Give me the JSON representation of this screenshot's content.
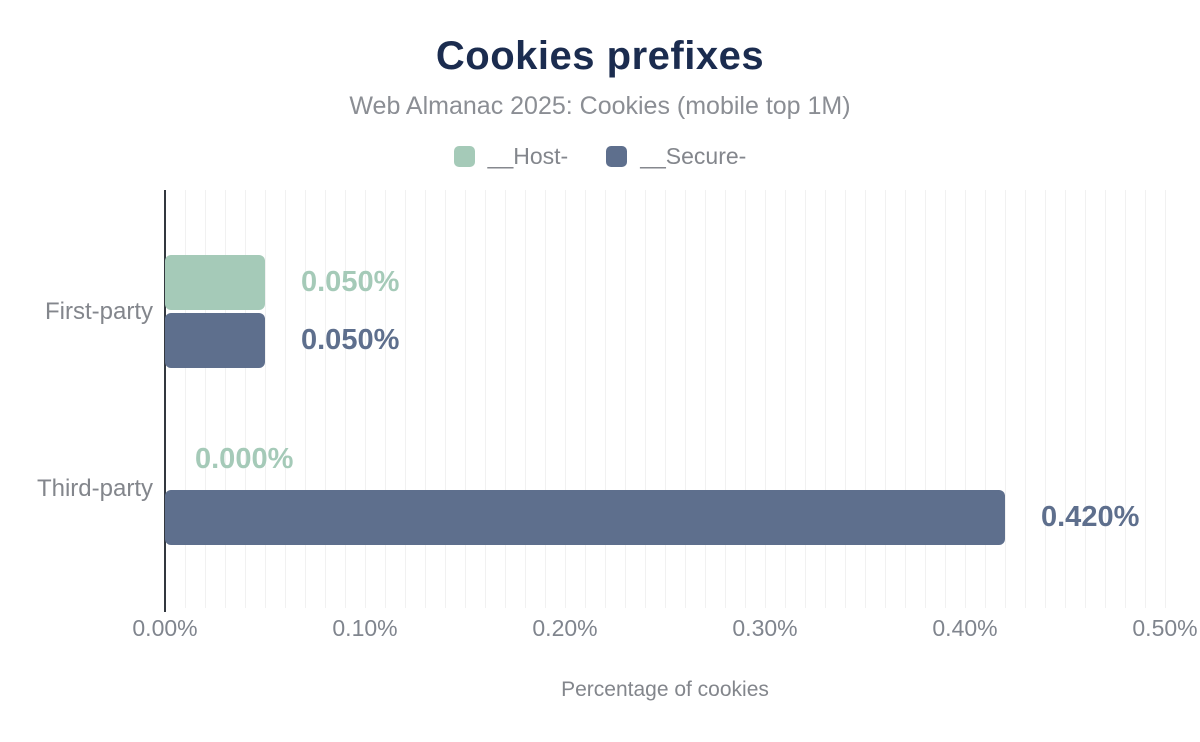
{
  "header": {
    "title": "Cookies prefixes",
    "subtitle": "Web Almanac 2025: Cookies (mobile top 1M)"
  },
  "chart_data": {
    "type": "bar",
    "orientation": "horizontal",
    "title": "Cookies prefixes",
    "subtitle": "Web Almanac 2025: Cookies (mobile top 1M)",
    "categories": [
      "First-party",
      "Third-party"
    ],
    "series": [
      {
        "name": "__Host-",
        "color": "#a5cab8",
        "values": [
          0.05,
          0.0
        ],
        "value_labels": [
          "0.050%",
          "0.000%"
        ]
      },
      {
        "name": "__Secure-",
        "color": "#5e6f8d",
        "values": [
          0.05,
          0.42
        ],
        "value_labels": [
          "0.050%",
          "0.420%"
        ]
      }
    ],
    "xlabel": "Percentage of cookies",
    "ylabel": "",
    "xlim": [
      0,
      0.5
    ],
    "x_tick_values": [
      0,
      0.1,
      0.2,
      0.3,
      0.4,
      0.5
    ],
    "x_tick_labels": [
      "0.00%",
      "0.10%",
      "0.20%",
      "0.30%",
      "0.40%",
      "0.50%"
    ],
    "grid_minor_step": 0.01,
    "grid": "vertical-minor",
    "legend_position": "top"
  },
  "colors": {
    "title": "#1b2c4f",
    "subtitle_gray": "#8b8e94",
    "axis_line": "#33383f",
    "grid_line": "#f1f1f1",
    "host_green": "#a5cab8",
    "secure_blue": "#5e6f8d"
  }
}
